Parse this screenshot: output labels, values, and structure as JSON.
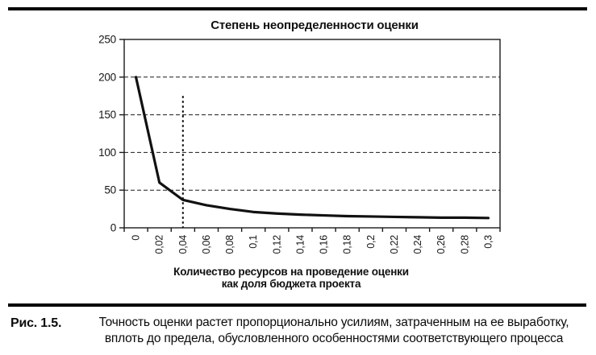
{
  "figure": {
    "caption_label": "Рис. 1.5.",
    "caption_line1": "Точность оценки растет пропорционально усилиям, затраченным на ее выработку,",
    "caption_line2": "вплоть до предела, обусловленного особенностями соответствующего процесса"
  },
  "chart_data": {
    "type": "line",
    "title": "Степень неопределенности оценки",
    "xlabel": "Количество ресурсов на проведение оценки как доля бюджета проекта",
    "xlabel_line1": "Количество ресурсов на проведение оценки",
    "xlabel_line2": "как доля бюджета проекта",
    "ylabel": "",
    "categories": [
      "0",
      "0,02",
      "0,04",
      "0,06",
      "0,08",
      "0,1",
      "0,12",
      "0,14",
      "0,16",
      "0,18",
      "0,2",
      "0,22",
      "0,24",
      "0,26",
      "0,28",
      "0,3"
    ],
    "x_values": [
      0,
      0.02,
      0.04,
      0.06,
      0.08,
      0.1,
      0.12,
      0.14,
      0.16,
      0.18,
      0.2,
      0.22,
      0.24,
      0.26,
      0.28,
      0.3
    ],
    "values": [
      200,
      60,
      37,
      30,
      25,
      21,
      19,
      17.5,
      16.5,
      15.5,
      15,
      14.5,
      14,
      13.5,
      13.5,
      13
    ],
    "ylim": [
      0,
      250
    ],
    "y_ticks": [
      0,
      50,
      100,
      150,
      200,
      250
    ],
    "grid": "horizontal-dashed",
    "legend": "none",
    "marker_line": {
      "x": 0.04,
      "top_value": 175,
      "style": "dotted-vertical"
    },
    "line_color": "#111111",
    "axis_color": "#1a1a1a",
    "background_color": "#ffffff"
  }
}
